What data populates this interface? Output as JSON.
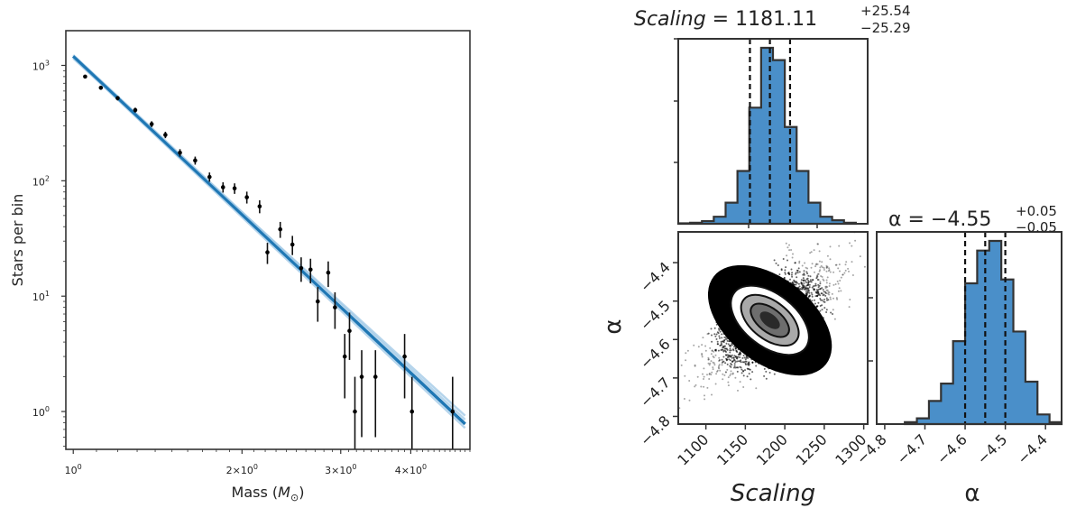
{
  "chart_data": [
    {
      "type": "scatter",
      "xlabel": "Mass ($M_\\odot$)",
      "ylabel": "Stars per bin",
      "x_scale": "log",
      "y_scale": "log",
      "xlim": [
        0.97,
        5.1
      ],
      "ylim": [
        0.47,
        2000
      ],
      "x_ticks": [
        {
          "value": 1,
          "base": "10",
          "exp": "0"
        },
        {
          "value": 2,
          "mant": "2",
          "base": "10",
          "exp": "0"
        },
        {
          "value": 3,
          "mant": "3",
          "base": "10",
          "exp": "0"
        },
        {
          "value": 4,
          "mant": "4",
          "base": "10",
          "exp": "0"
        }
      ],
      "y_ticks": [
        {
          "value": 1,
          "base": "10",
          "exp": "0"
        },
        {
          "value": 10,
          "base": "10",
          "exp": "1"
        },
        {
          "value": 100,
          "base": "10",
          "exp": "2"
        },
        {
          "value": 1000,
          "base": "10",
          "exp": "3"
        }
      ],
      "points": [
        {
          "x": 1.05,
          "y": 800,
          "err": 28
        },
        {
          "x": 1.12,
          "y": 640,
          "err": 25
        },
        {
          "x": 1.2,
          "y": 520,
          "err": 23
        },
        {
          "x": 1.29,
          "y": 410,
          "err": 20
        },
        {
          "x": 1.38,
          "y": 310,
          "err": 18
        },
        {
          "x": 1.46,
          "y": 250,
          "err": 16
        },
        {
          "x": 1.55,
          "y": 175,
          "err": 13
        },
        {
          "x": 1.65,
          "y": 150,
          "err": 12
        },
        {
          "x": 1.75,
          "y": 108,
          "err": 10
        },
        {
          "x": 1.85,
          "y": 88,
          "err": 9
        },
        {
          "x": 1.94,
          "y": 86,
          "err": 9
        },
        {
          "x": 2.04,
          "y": 72,
          "err": 8.5
        },
        {
          "x": 2.15,
          "y": 60,
          "err": 7.7
        },
        {
          "x": 2.22,
          "y": 24,
          "err": 5
        },
        {
          "x": 2.34,
          "y": 38,
          "err": 6
        },
        {
          "x": 2.46,
          "y": 28,
          "err": 5.3
        },
        {
          "x": 2.55,
          "y": 17.5,
          "err": 4.2
        },
        {
          "x": 2.65,
          "y": 17,
          "err": 4.1
        },
        {
          "x": 2.73,
          "y": 9,
          "err": 3
        },
        {
          "x": 2.85,
          "y": 16,
          "err": 4
        },
        {
          "x": 2.93,
          "y": 8,
          "err": 2.8
        },
        {
          "x": 3.05,
          "y": 3,
          "err": 1.7
        },
        {
          "x": 3.11,
          "y": 5,
          "err": 2.2
        },
        {
          "x": 3.18,
          "y": 1,
          "err": 1
        },
        {
          "x": 3.27,
          "y": 2,
          "err": 1.4
        },
        {
          "x": 3.46,
          "y": 2,
          "err": 1.4
        },
        {
          "x": 3.9,
          "y": 3,
          "err": 1.7
        },
        {
          "x": 4.02,
          "y": 1,
          "err": 1
        },
        {
          "x": 4.75,
          "y": 1,
          "err": 1
        }
      ],
      "fit_lines": [
        {
          "x0": 1.0,
          "y0": 1200,
          "x1": 5.0,
          "y1": 0.78
        },
        {
          "x0": 1.0,
          "y0": 1170,
          "x1": 5.0,
          "y1": 0.72
        },
        {
          "x0": 1.0,
          "y0": 1230,
          "x1": 5.0,
          "y1": 0.85
        },
        {
          "x0": 1.0,
          "y0": 1150,
          "x1": 5.0,
          "y1": 0.92
        }
      ],
      "line_color": "#1f77b4",
      "band_color": "#9ec7e6"
    },
    {
      "type": "histogram",
      "title": "$Scaling$ = $1181.11_{-25.29}^{+25.54}$",
      "title_parts": {
        "name": "Scaling",
        "value": "1181.11",
        "plus": "+25.54",
        "minus": "−25.29"
      },
      "xlim": [
        1065,
        1305
      ],
      "bins": [
        {
          "x0": 1065,
          "x1": 1080,
          "count": 0.003
        },
        {
          "x0": 1080,
          "x1": 1095,
          "count": 0.006
        },
        {
          "x0": 1095,
          "x1": 1110,
          "count": 0.015
        },
        {
          "x0": 1110,
          "x1": 1125,
          "count": 0.04
        },
        {
          "x0": 1125,
          "x1": 1140,
          "count": 0.12
        },
        {
          "x0": 1140,
          "x1": 1155,
          "count": 0.3
        },
        {
          "x0": 1155,
          "x1": 1170,
          "count": 0.66
        },
        {
          "x0": 1170,
          "x1": 1185,
          "count": 1.0
        },
        {
          "x0": 1185,
          "x1": 1200,
          "count": 0.93
        },
        {
          "x0": 1200,
          "x1": 1215,
          "count": 0.55
        },
        {
          "x0": 1215,
          "x1": 1230,
          "count": 0.3
        },
        {
          "x0": 1230,
          "x1": 1245,
          "count": 0.12
        },
        {
          "x0": 1245,
          "x1": 1260,
          "count": 0.04
        },
        {
          "x0": 1260,
          "x1": 1275,
          "count": 0.02
        },
        {
          "x0": 1275,
          "x1": 1290,
          "count": 0.006
        }
      ],
      "quantiles": [
        1155.82,
        1181.11,
        1206.65
      ],
      "fill_color": "#4a8fc9"
    },
    {
      "type": "histogram",
      "title": "α = $-4.55_{-0.05}^{+0.05}$",
      "title_parts": {
        "name": "α",
        "value": "−4.55",
        "plus": "+0.05",
        "minus": "−0.05"
      },
      "xlim": [
        -4.82,
        -4.36
      ],
      "xlabel": "α",
      "x_ticks": [
        {
          "value": -4.8,
          "label": "−4.8"
        },
        {
          "value": -4.7,
          "label": "−4.7"
        },
        {
          "value": -4.6,
          "label": "−4.6"
        },
        {
          "value": -4.5,
          "label": "−4.5"
        },
        {
          "value": -4.4,
          "label": "−4.4"
        }
      ],
      "bins": [
        {
          "x0": -4.75,
          "x1": -4.72,
          "count": 0.01
        },
        {
          "x0": -4.72,
          "x1": -4.69,
          "count": 0.03
        },
        {
          "x0": -4.69,
          "x1": -4.66,
          "count": 0.12
        },
        {
          "x0": -4.66,
          "x1": -4.63,
          "count": 0.21
        },
        {
          "x0": -4.63,
          "x1": -4.6,
          "count": 0.43
        },
        {
          "x0": -4.6,
          "x1": -4.57,
          "count": 0.73
        },
        {
          "x0": -4.57,
          "x1": -4.54,
          "count": 0.9
        },
        {
          "x0": -4.54,
          "x1": -4.51,
          "count": 0.95
        },
        {
          "x0": -4.51,
          "x1": -4.48,
          "count": 0.75
        },
        {
          "x0": -4.48,
          "x1": -4.45,
          "count": 0.48
        },
        {
          "x0": -4.45,
          "x1": -4.42,
          "count": 0.22
        },
        {
          "x0": -4.42,
          "x1": -4.39,
          "count": 0.05
        },
        {
          "x0": -4.39,
          "x1": -4.36,
          "count": 0.01
        }
      ],
      "quantiles": [
        -4.6,
        -4.55,
        -4.5
      ],
      "fill_color": "#4a8fc9"
    },
    {
      "type": "scatter_density",
      "xlabel": "$Scaling$",
      "ylabel": "α",
      "xlim": [
        1065,
        1305
      ],
      "ylim": [
        -4.82,
        -4.32
      ],
      "x_ticks": [
        {
          "value": 1100,
          "label": "1100"
        },
        {
          "value": 1150,
          "label": "1150"
        },
        {
          "value": 1200,
          "label": "1200"
        },
        {
          "value": 1250,
          "label": "1250"
        },
        {
          "value": 1300,
          "label": "1300"
        }
      ],
      "y_ticks": [
        {
          "value": -4.4,
          "label": "−4.4"
        },
        {
          "value": -4.5,
          "label": "−4.5"
        },
        {
          "value": -4.6,
          "label": "−4.6"
        },
        {
          "value": -4.7,
          "label": "−4.7"
        },
        {
          "value": -4.8,
          "label": "−4.8"
        }
      ],
      "center": [
        1181.11,
        -4.55
      ],
      "correlation": -0.68
    }
  ]
}
